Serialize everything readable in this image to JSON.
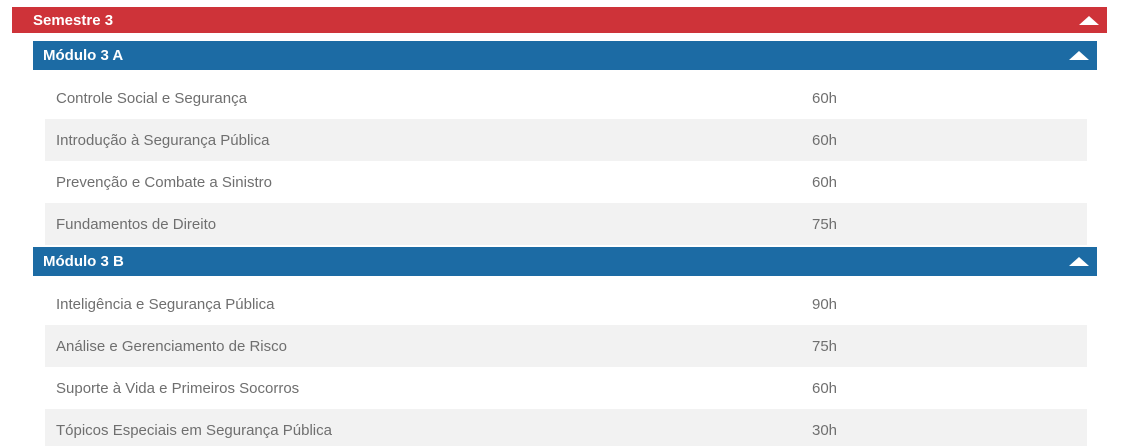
{
  "colors": {
    "semester_header_bg": "#ce3339",
    "module_header_bg": "#1c6ba4",
    "header_text": "#ffffff",
    "row_text": "#6f6f6f",
    "row_bg": "#ffffff",
    "row_alt_bg": "#f2f2f2"
  },
  "icons": {
    "semester_collapse": "chevron-up-icon",
    "module_collapse": "chevron-up-icon"
  },
  "accordion": {
    "semester": {
      "label": "Semestre 3",
      "expanded": true,
      "modules": [
        {
          "label": "Módulo 3 A",
          "expanded": true,
          "courses": [
            {
              "name": "Controle Social e Segurança",
              "hours": "60h"
            },
            {
              "name": "Introdução à Segurança Pública",
              "hours": "60h"
            },
            {
              "name": "Prevenção e Combate a Sinistro",
              "hours": "60h"
            },
            {
              "name": "Fundamentos de Direito",
              "hours": "75h"
            }
          ]
        },
        {
          "label": "Módulo 3 B",
          "expanded": true,
          "courses": [
            {
              "name": "Inteligência e Segurança Pública",
              "hours": "90h"
            },
            {
              "name": "Análise e Gerenciamento de Risco",
              "hours": "75h"
            },
            {
              "name": "Suporte à Vida e Primeiros Socorros",
              "hours": "60h"
            },
            {
              "name": "Tópicos Especiais em Segurança Pública",
              "hours": "30h"
            }
          ]
        }
      ]
    }
  }
}
